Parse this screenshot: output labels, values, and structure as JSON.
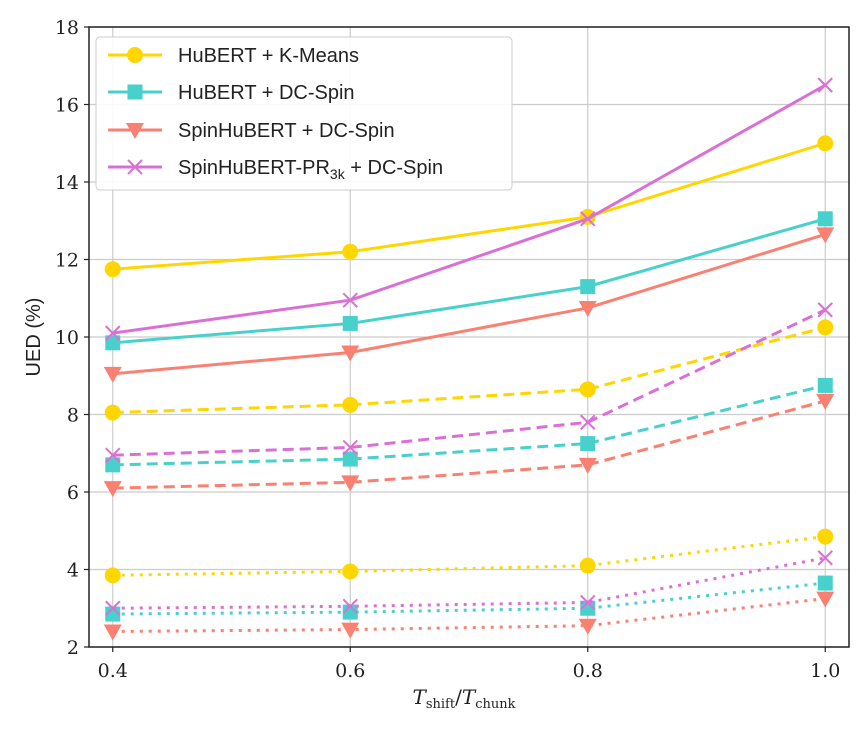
{
  "chart_data": {
    "type": "line",
    "title": "",
    "xlabel_main_left": "T",
    "xlabel_sub_left": "shift",
    "xlabel_sep": "/",
    "xlabel_main_right": "T",
    "xlabel_sub_right": "chunk",
    "ylabel": "UED (%)",
    "x": [
      0.4,
      0.6,
      0.8,
      1.0
    ],
    "x_tick_labels": [
      "0.4",
      "0.6",
      "0.8",
      "1.0"
    ],
    "y_ticks": [
      2,
      4,
      6,
      8,
      10,
      12,
      14,
      16,
      18
    ],
    "y_tick_labels": [
      "2",
      "4",
      "6",
      "8",
      "10",
      "12",
      "14",
      "16",
      "18"
    ],
    "xlim": [
      0.38,
      1.02
    ],
    "ylim": [
      2,
      18
    ],
    "grid": true,
    "legend_position": "top-left",
    "series": [
      {
        "name": "HuBERT + K-Means",
        "legend_label": "HuBERT + K-Means",
        "color": "#FFD600",
        "marker": "circle",
        "linestyle": "solid",
        "values": [
          11.75,
          12.2,
          13.1,
          15.0
        ]
      },
      {
        "name": "HuBERT + DC-Spin",
        "legend_label": "HuBERT + DC-Spin",
        "color": "#48D1CC",
        "marker": "square",
        "linestyle": "solid",
        "values": [
          9.85,
          10.35,
          11.3,
          13.05
        ]
      },
      {
        "name": "SpinHuBERT + DC-Spin",
        "legend_label": "SpinHuBERT + DC-Spin",
        "color": "#FA8072",
        "marker": "triangle-down",
        "linestyle": "solid",
        "values": [
          9.05,
          9.6,
          10.75,
          12.65
        ]
      },
      {
        "name": "SpinHuBERT-PR3k + DC-Spin",
        "legend_label": "SpinHuBERT-PR",
        "legend_sub": "3k",
        "legend_suffix": " + DC-Spin",
        "color": "#DA70D6",
        "marker": "x",
        "linestyle": "solid",
        "values": [
          10.1,
          10.95,
          13.05,
          16.5
        ]
      },
      {
        "name": "HuBERT + K-Means (dashed)",
        "color": "#FFD600",
        "marker": "circle",
        "linestyle": "dashed",
        "values": [
          8.05,
          8.25,
          8.65,
          10.25
        ]
      },
      {
        "name": "HuBERT + DC-Spin (dashed)",
        "color": "#48D1CC",
        "marker": "square",
        "linestyle": "dashed",
        "values": [
          6.7,
          6.85,
          7.25,
          8.75
        ]
      },
      {
        "name": "SpinHuBERT + DC-Spin (dashed)",
        "color": "#FA8072",
        "marker": "triangle-down",
        "linestyle": "dashed",
        "values": [
          6.1,
          6.25,
          6.7,
          8.35
        ]
      },
      {
        "name": "SpinHuBERT-PR3k + DC-Spin (dashed)",
        "color": "#DA70D6",
        "marker": "x",
        "linestyle": "dashed",
        "values": [
          6.95,
          7.15,
          7.8,
          10.7
        ]
      },
      {
        "name": "HuBERT + K-Means (dotted)",
        "color": "#FFD600",
        "marker": "circle",
        "linestyle": "dotted",
        "values": [
          3.85,
          3.95,
          4.1,
          4.85
        ]
      },
      {
        "name": "HuBERT + DC-Spin (dotted)",
        "color": "#48D1CC",
        "marker": "square",
        "linestyle": "dotted",
        "values": [
          2.85,
          2.9,
          3.0,
          3.65
        ]
      },
      {
        "name": "SpinHuBERT + DC-Spin (dotted)",
        "color": "#FA8072",
        "marker": "triangle-down",
        "linestyle": "dotted",
        "values": [
          2.4,
          2.45,
          2.55,
          3.25
        ]
      },
      {
        "name": "SpinHuBERT-PR3k + DC-Spin (dotted)",
        "color": "#DA70D6",
        "marker": "x",
        "linestyle": "dotted",
        "values": [
          3.0,
          3.05,
          3.15,
          4.3
        ]
      }
    ]
  }
}
